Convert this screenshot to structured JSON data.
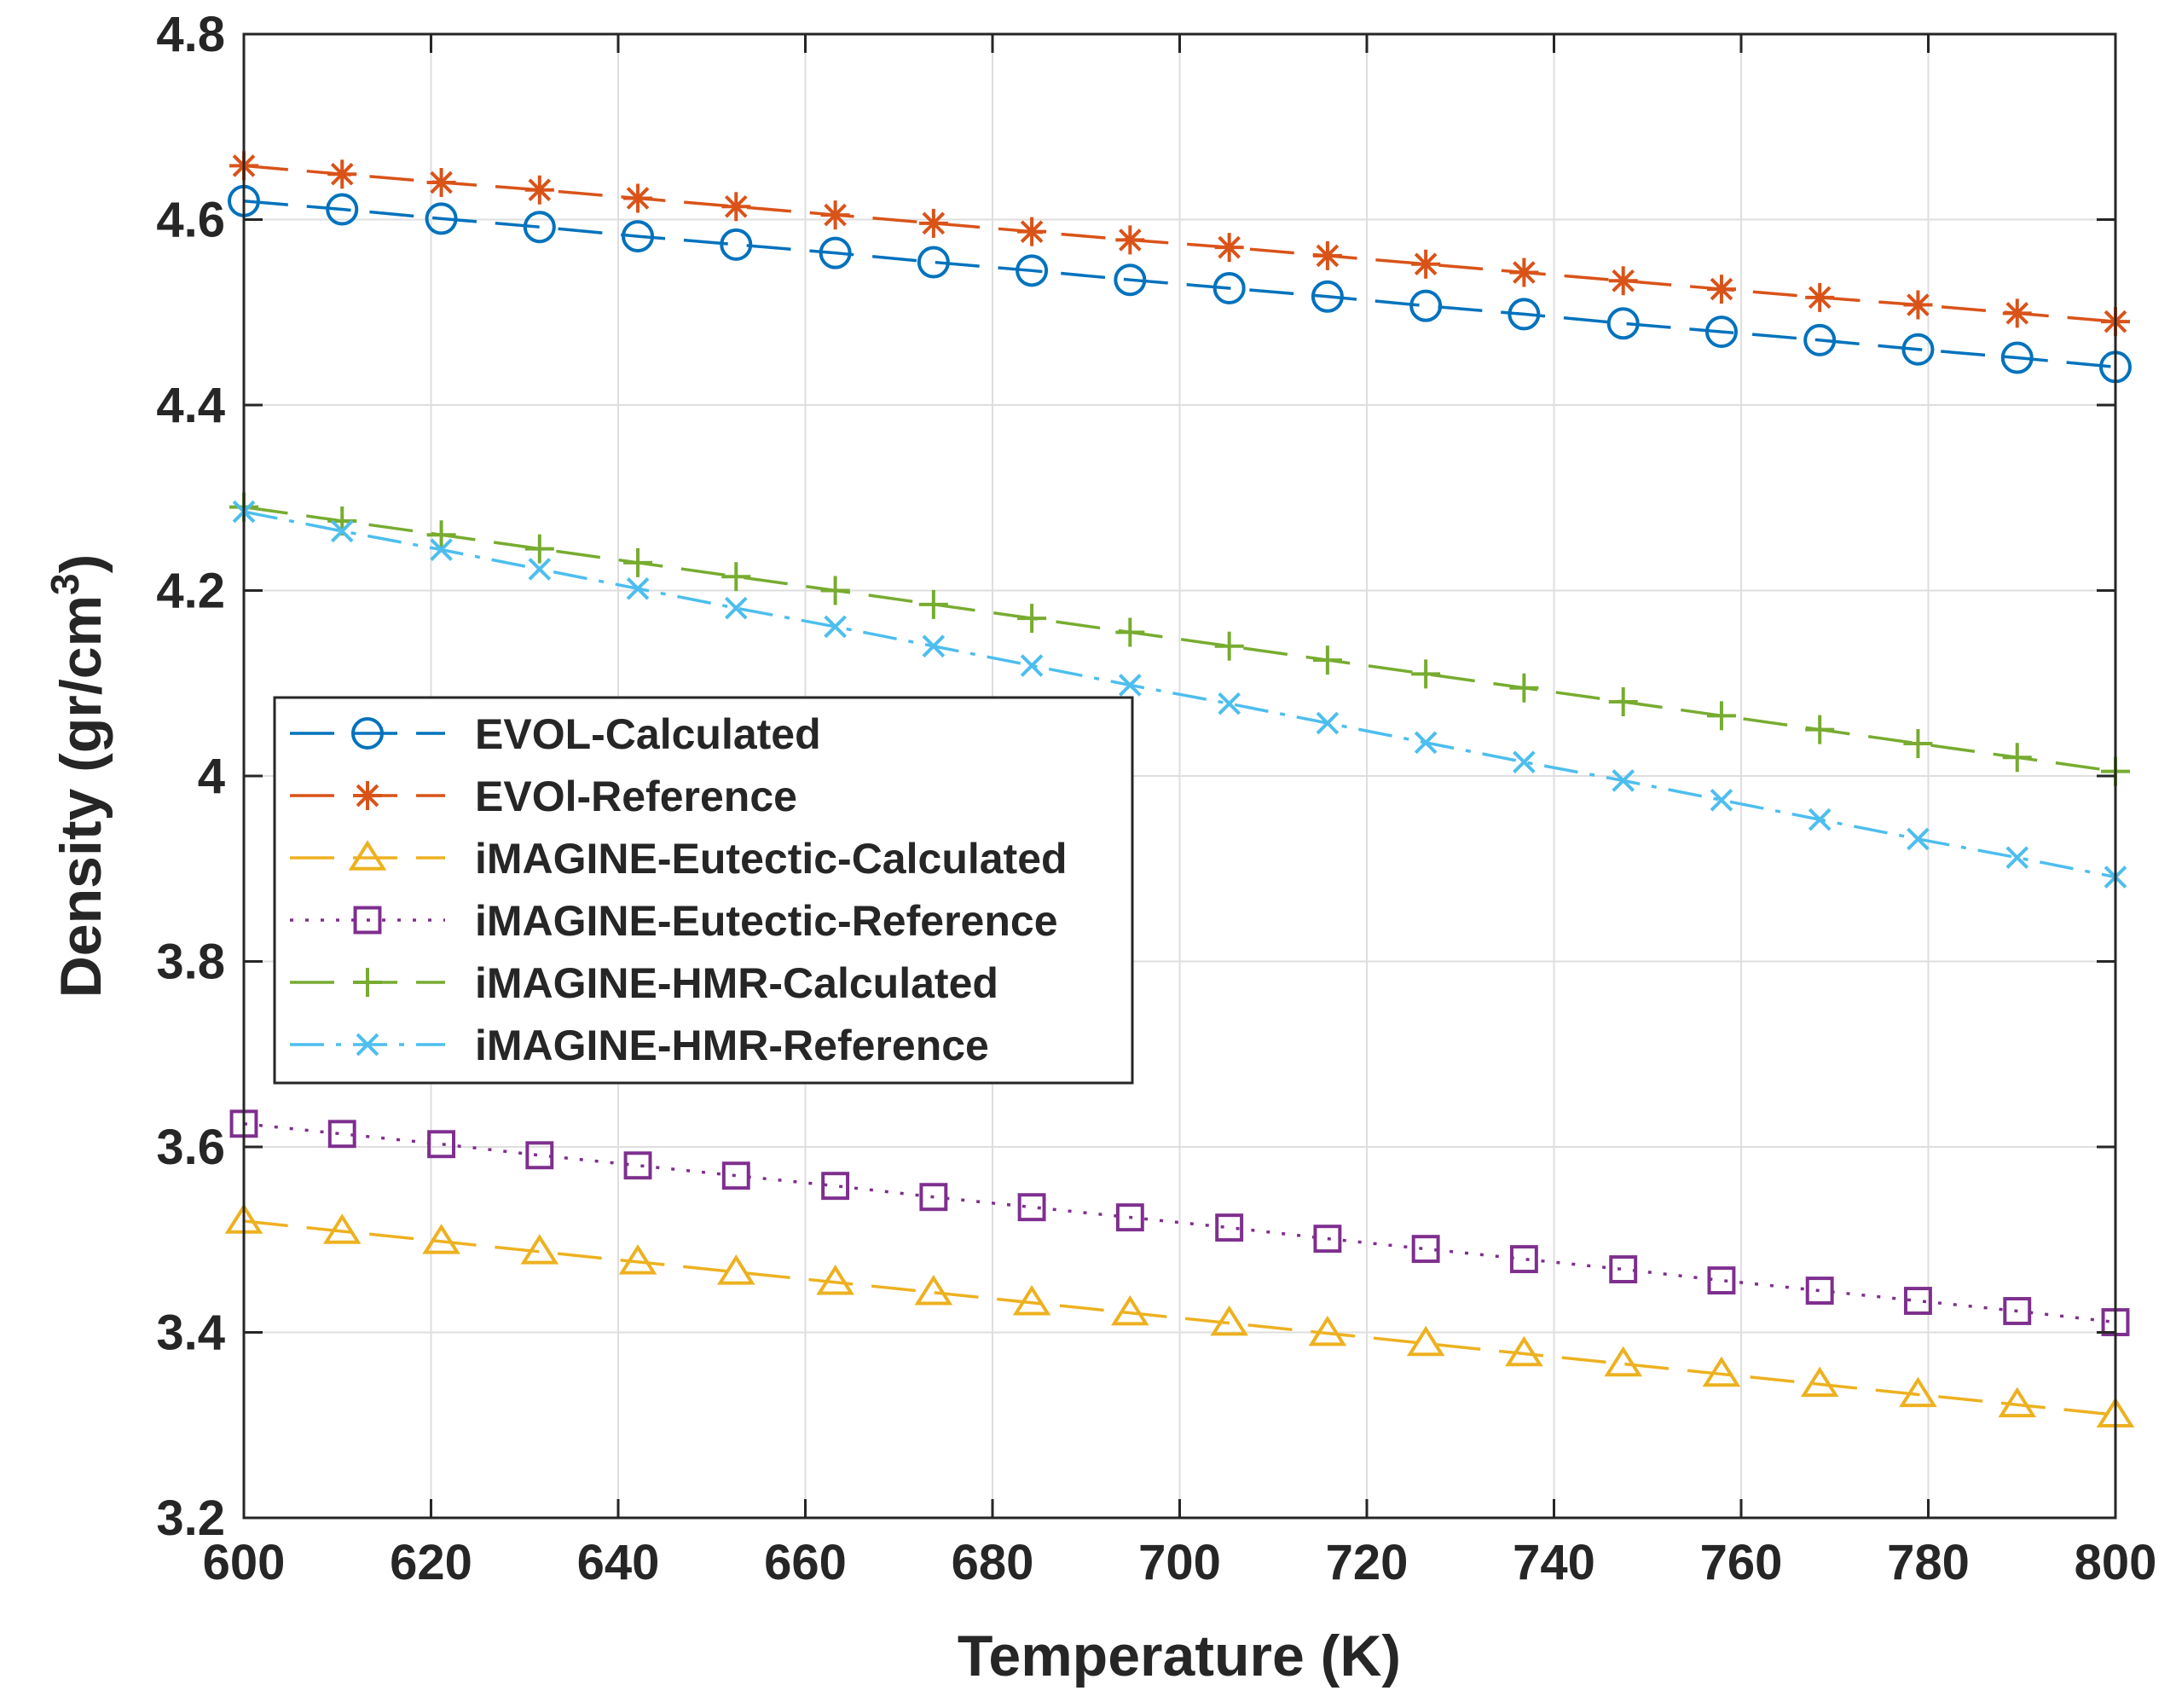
{
  "chart_data": {
    "type": "line",
    "title": "",
    "xlabel": "Temperature (K)",
    "ylabel": "Density (gr/cm",
    "ylabel_sup": "3",
    "ylabel_close": ")",
    "xlim": [
      600,
      800
    ],
    "ylim": [
      3.2,
      4.8
    ],
    "xticks": [
      600,
      620,
      640,
      660,
      680,
      700,
      720,
      740,
      760,
      780,
      800
    ],
    "yticks": [
      3.2,
      3.4,
      3.6,
      3.8,
      4,
      4.2,
      4.4,
      4.6,
      4.8
    ],
    "ytick_labels": [
      "3.2",
      "3.4",
      "3.6",
      "3.8",
      "4",
      "4.2",
      "4.4",
      "4.6",
      "4.8"
    ],
    "grid": true,
    "legend_position": "center-left",
    "x": [
      600,
      610.5,
      621.1,
      631.6,
      642.1,
      652.6,
      663.2,
      673.7,
      684.2,
      694.7,
      705.3,
      715.8,
      726.3,
      736.8,
      747.4,
      757.9,
      768.4,
      778.9,
      789.5,
      800
    ],
    "series": [
      {
        "name": "EVOL-Calculated",
        "color": "#0072BD",
        "dash": "long-dash",
        "marker": "circle",
        "values": [
          4.62,
          4.611,
          4.601,
          4.592,
          4.582,
          4.573,
          4.564,
          4.554,
          4.545,
          4.535,
          4.526,
          4.517,
          4.507,
          4.498,
          4.488,
          4.479,
          4.47,
          4.46,
          4.451,
          4.441
        ]
      },
      {
        "name": "EVOl-Reference",
        "color": "#D95319",
        "dash": "long-dash",
        "marker": "star",
        "values": [
          4.658,
          4.649,
          4.64,
          4.632,
          4.623,
          4.614,
          4.605,
          4.596,
          4.587,
          4.578,
          4.57,
          4.561,
          4.552,
          4.543,
          4.534,
          4.525,
          4.516,
          4.508,
          4.499,
          4.49
        ]
      },
      {
        "name": "iMAGINE-Eutectic-Calculated",
        "color": "#EDB120",
        "dash": "long-dash",
        "marker": "triangle",
        "values": [
          3.52,
          3.509,
          3.498,
          3.487,
          3.476,
          3.465,
          3.454,
          3.443,
          3.432,
          3.421,
          3.41,
          3.399,
          3.388,
          3.377,
          3.366,
          3.355,
          3.344,
          3.333,
          3.322,
          3.311
        ]
      },
      {
        "name": "iMAGINE-Eutectic-Reference",
        "color": "#7E2F8E",
        "dash": "dotted",
        "marker": "square",
        "values": [
          3.625,
          3.614,
          3.603,
          3.591,
          3.58,
          3.569,
          3.558,
          3.546,
          3.535,
          3.524,
          3.513,
          3.501,
          3.49,
          3.479,
          3.468,
          3.456,
          3.445,
          3.434,
          3.423,
          3.411
        ]
      },
      {
        "name": "iMAGINE-HMR-Calculated",
        "color": "#77AC30",
        "dash": "long-dash",
        "marker": "plus",
        "values": [
          4.29,
          4.275,
          4.26,
          4.245,
          4.23,
          4.215,
          4.2,
          4.185,
          4.17,
          4.155,
          4.14,
          4.125,
          4.11,
          4.095,
          4.08,
          4.065,
          4.05,
          4.035,
          4.02,
          4.005
        ]
      },
      {
        "name": "iMAGINE-HMR-Reference",
        "color": "#4DBEEE",
        "dash": "dash-dot",
        "marker": "x",
        "values": [
          4.285,
          4.264,
          4.244,
          4.223,
          4.202,
          4.181,
          4.161,
          4.14,
          4.119,
          4.098,
          4.078,
          4.057,
          4.036,
          4.015,
          3.995,
          3.974,
          3.953,
          3.932,
          3.912,
          3.891
        ]
      }
    ]
  }
}
